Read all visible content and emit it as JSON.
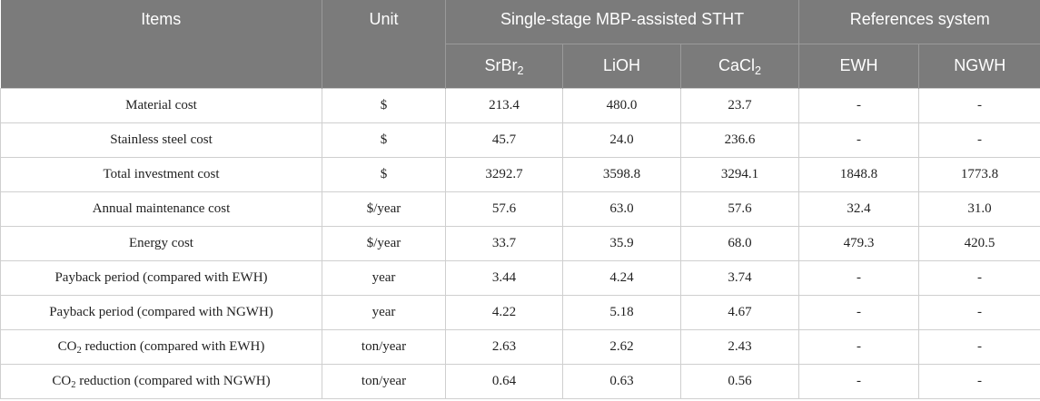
{
  "header": {
    "items": "Items",
    "unit": "Unit",
    "group_stht": "Single-stage MBP-assisted STHT",
    "group_ref": "References system",
    "srbr_base": "SrBr",
    "srbr_sub": "2",
    "lioh": "LiOH",
    "cacl_base": "CaCl",
    "cacl_sub": "2",
    "ewh": "EWH",
    "ngwh": "NGWH"
  },
  "rows": [
    {
      "item": "Material cost",
      "unit": "$",
      "srbr2": "213.4",
      "lioh": "480.0",
      "cacl2": "23.7",
      "ewh": "-",
      "ngwh": "-"
    },
    {
      "item": "Stainless steel cost",
      "unit": "$",
      "srbr2": "45.7",
      "lioh": "24.0",
      "cacl2": "236.6",
      "ewh": "-",
      "ngwh": "-"
    },
    {
      "item": "Total investment cost",
      "unit": "$",
      "srbr2": "3292.7",
      "lioh": "3598.8",
      "cacl2": "3294.1",
      "ewh": "1848.8",
      "ngwh": "1773.8"
    },
    {
      "item": "Annual maintenance cost",
      "unit": "$/year",
      "srbr2": "57.6",
      "lioh": "63.0",
      "cacl2": "57.6",
      "ewh": "32.4",
      "ngwh": "31.0"
    },
    {
      "item": "Energy cost",
      "unit": "$/year",
      "srbr2": "33.7",
      "lioh": "35.9",
      "cacl2": "68.0",
      "ewh": "479.3",
      "ngwh": "420.5"
    },
    {
      "item": "Payback period (compared with EWH)",
      "unit": "year",
      "srbr2": "3.44",
      "lioh": "4.24",
      "cacl2": "3.74",
      "ewh": "-",
      "ngwh": "-"
    },
    {
      "item": "Payback period (compared with NGWH)",
      "unit": "year",
      "srbr2": "4.22",
      "lioh": "5.18",
      "cacl2": "4.67",
      "ewh": "-",
      "ngwh": "-"
    },
    {
      "item_pre": "CO",
      "item_sub": "2",
      "item_post": " reduction (compared with EWH)",
      "unit": "ton/year",
      "srbr2": "2.63",
      "lioh": "2.62",
      "cacl2": "2.43",
      "ewh": "-",
      "ngwh": "-"
    },
    {
      "item_pre": "CO",
      "item_sub": "2",
      "item_post": " reduction (compared with NGWH)",
      "unit": "ton/year",
      "srbr2": "0.64",
      "lioh": "0.63",
      "cacl2": "0.56",
      "ewh": "-",
      "ngwh": "-"
    }
  ]
}
